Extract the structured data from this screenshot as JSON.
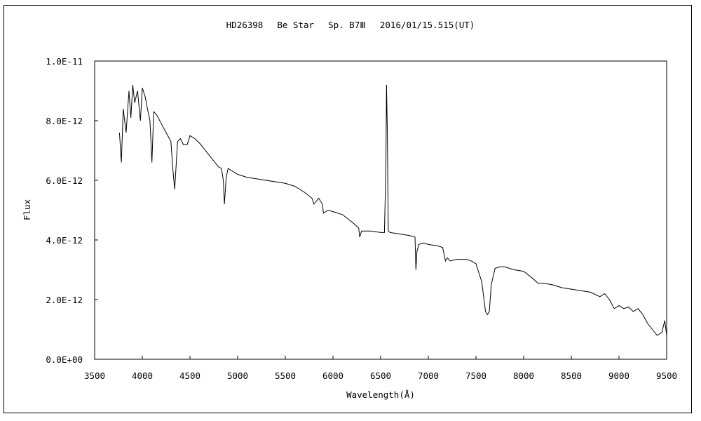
{
  "chart_data": {
    "type": "line",
    "title": "HD26398　 Be Star　 Sp. B7Ⅲ　 2016/01/15.515(UT)",
    "xlabel": "Wavelength(Å)",
    "ylabel": "Flux",
    "xlim": [
      3500,
      9500
    ],
    "ylim": [
      0,
      1e-11
    ],
    "x_ticks": [
      "3500",
      "4000",
      "4500",
      "5000",
      "5500",
      "6000",
      "6500",
      "7000",
      "7500",
      "8000",
      "8500",
      "9000",
      "9500"
    ],
    "y_ticks": [
      "0.0E+00",
      "2.0E-12",
      "4.0E-12",
      "6.0E-12",
      "8.0E-12",
      "1.0E-11"
    ],
    "grid": false,
    "legend": "none",
    "line_color": "#000000",
    "series": [
      {
        "x": [
          3760,
          3780,
          3800,
          3830,
          3860,
          3880,
          3900,
          3920,
          3950,
          3980,
          4000,
          4030,
          4060,
          4080,
          4101,
          4120,
          4150,
          4200,
          4250,
          4300,
          4320,
          4340,
          4370,
          4400,
          4430,
          4471,
          4500,
          4550,
          4600,
          4650,
          4700,
          4750,
          4800,
          4830,
          4850,
          4861,
          4880,
          4900,
          4950,
          5000,
          5100,
          5200,
          5300,
          5400,
          5500,
          5600,
          5700,
          5780,
          5800,
          5850,
          5890,
          5900,
          5950,
          6000,
          6100,
          6200,
          6270,
          6280,
          6300,
          6400,
          6500,
          6540,
          6555,
          6562,
          6570,
          6580,
          6600,
          6700,
          6800,
          6860,
          6870,
          6880,
          6900,
          6950,
          7000,
          7100,
          7150,
          7180,
          7200,
          7230,
          7300,
          7400,
          7450,
          7500,
          7560,
          7600,
          7620,
          7640,
          7660,
          7700,
          7750,
          7800,
          7900,
          8000,
          8100,
          8150,
          8200,
          8300,
          8400,
          8500,
          8600,
          8700,
          8800,
          8850,
          8900,
          8950,
          9000,
          9050,
          9100,
          9150,
          9200,
          9250,
          9300,
          9350,
          9400,
          9450,
          9480,
          9500
        ],
        "y": [
          7.6e-12,
          6.6e-12,
          8.4e-12,
          7.6e-12,
          9e-12,
          8.1e-12,
          9.2e-12,
          8.6e-12,
          9e-12,
          8e-12,
          9.1e-12,
          8.8e-12,
          8.3e-12,
          8e-12,
          6.6e-12,
          8.3e-12,
          8.2e-12,
          7.9e-12,
          7.6e-12,
          7.3e-12,
          6.4e-12,
          5.7e-12,
          7.3e-12,
          7.4e-12,
          7.2e-12,
          7.2e-12,
          7.5e-12,
          7.4e-12,
          7.25e-12,
          7.05e-12,
          6.85e-12,
          6.65e-12,
          6.45e-12,
          6.4e-12,
          6e-12,
          5.2e-12,
          6.1e-12,
          6.4e-12,
          6.3e-12,
          6.2e-12,
          6.1e-12,
          6.05e-12,
          6e-12,
          5.95e-12,
          5.9e-12,
          5.8e-12,
          5.6e-12,
          5.4e-12,
          5.2e-12,
          5.4e-12,
          5.2e-12,
          4.9e-12,
          5e-12,
          4.95e-12,
          4.85e-12,
          4.6e-12,
          4.4e-12,
          4.1e-12,
          4.3e-12,
          4.3e-12,
          4.25e-12,
          4.25e-12,
          6.5e-12,
          9.2e-12,
          7.7e-12,
          4.3e-12,
          4.25e-12,
          4.2e-12,
          4.15e-12,
          4.1e-12,
          3e-12,
          3.6e-12,
          3.85e-12,
          3.9e-12,
          3.85e-12,
          3.8e-12,
          3.75e-12,
          3.3e-12,
          3.4e-12,
          3.3e-12,
          3.35e-12,
          3.35e-12,
          3.3e-12,
          3.2e-12,
          2.6e-12,
          1.6e-12,
          1.5e-12,
          1.6e-12,
          2.5e-12,
          3.05e-12,
          3.1e-12,
          3.1e-12,
          3e-12,
          2.95e-12,
          2.7e-12,
          2.55e-12,
          2.55e-12,
          2.5e-12,
          2.4e-12,
          2.35e-12,
          2.3e-12,
          2.25e-12,
          2.1e-12,
          2.2e-12,
          2e-12,
          1.7e-12,
          1.8e-12,
          1.7e-12,
          1.75e-12,
          1.6e-12,
          1.7e-12,
          1.5e-12,
          1.2e-12,
          1e-12,
          8e-13,
          9e-13,
          1.3e-12,
          8e-13
        ]
      }
    ]
  }
}
